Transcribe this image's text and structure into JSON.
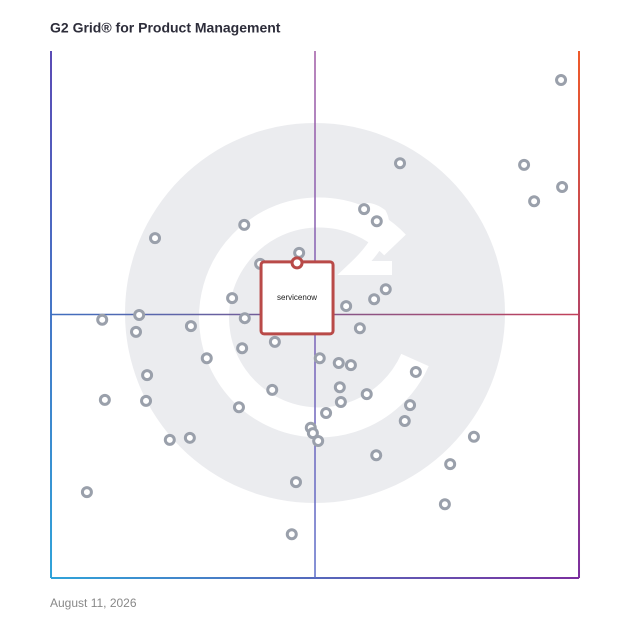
{
  "chart_data": {
    "type": "scatter",
    "title": "G2 Grid® for Product Management",
    "date": "August 11, 2026",
    "xlim": [
      0,
      100
    ],
    "ylim": [
      0,
      100
    ],
    "color": "#9aa0ab",
    "x": [
      96.6,
      66.1,
      89.6,
      96.8,
      91.5,
      59.3,
      61.7,
      19.7,
      36.6,
      47.0,
      39.6,
      63.4,
      61.2,
      55.9,
      34.3,
      36.7,
      16.7,
      9.7,
      16.1,
      26.5,
      58.5,
      42.4,
      36.2,
      29.5,
      50.9,
      54.5,
      56.8,
      69.1,
      18.2,
      54.7,
      41.9,
      59.8,
      10.2,
      18.0,
      54.9,
      68.0,
      35.6,
      52.1,
      67.0,
      49.2,
      49.6,
      50.6,
      26.3,
      22.5,
      80.1,
      61.6,
      75.6,
      46.4,
      6.8,
      74.6,
      45.6
    ],
    "y": [
      94.5,
      78.7,
      78.4,
      74.2,
      71.5,
      70.0,
      67.7,
      64.5,
      67.0,
      61.7,
      59.6,
      54.8,
      52.9,
      51.6,
      53.1,
      49.3,
      49.9,
      49.0,
      46.7,
      47.8,
      47.4,
      44.8,
      43.6,
      41.7,
      41.7,
      40.8,
      40.4,
      39.1,
      38.5,
      36.2,
      35.7,
      34.9,
      33.8,
      33.6,
      33.4,
      32.8,
      32.4,
      31.3,
      29.8,
      28.5,
      27.5,
      26.0,
      26.6,
      26.2,
      26.8,
      23.3,
      21.6,
      18.2,
      16.3,
      14.0,
      8.3
    ],
    "highlight": {
      "label": "servicenow",
      "x": 46.6,
      "y": 59.8,
      "color": "#b94a48"
    }
  }
}
